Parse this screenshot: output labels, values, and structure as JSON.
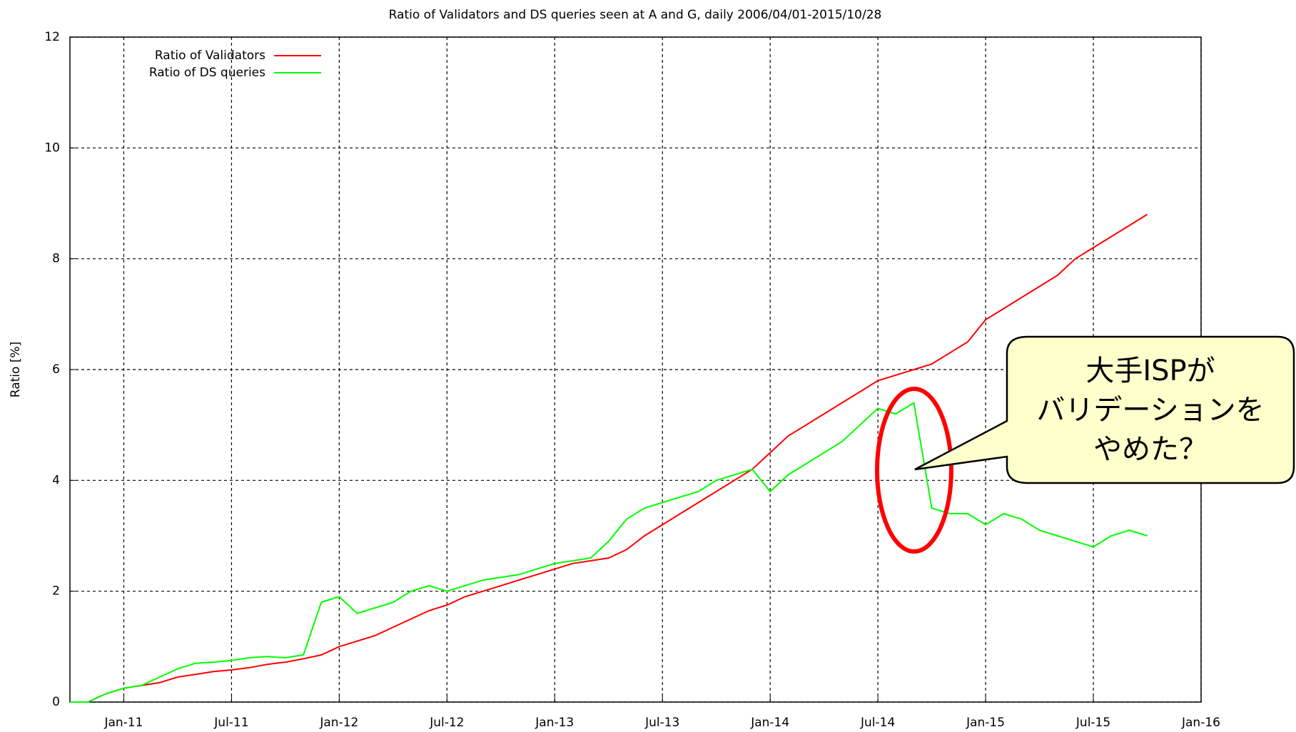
{
  "chart_data": {
    "type": "line",
    "title": "Ratio of Validators and DS queries seen at A and G, daily  2006/04/01-2015/10/28",
    "y_label": "Ratio [%]",
    "x": [
      "2010-10",
      "2010-11",
      "2010-12",
      "2011-01",
      "2011-02",
      "2011-03",
      "2011-04",
      "2011-05",
      "2011-06",
      "2011-07",
      "2011-08",
      "2011-09",
      "2011-10",
      "2011-11",
      "2011-12",
      "2012-01",
      "2012-02",
      "2012-03",
      "2012-04",
      "2012-05",
      "2012-06",
      "2012-07",
      "2012-08",
      "2012-09",
      "2012-10",
      "2012-11",
      "2012-12",
      "2013-01",
      "2013-02",
      "2013-03",
      "2013-04",
      "2013-05",
      "2013-06",
      "2013-07",
      "2013-08",
      "2013-09",
      "2013-10",
      "2013-11",
      "2013-12",
      "2014-01",
      "2014-02",
      "2014-03",
      "2014-04",
      "2014-05",
      "2014-06",
      "2014-07",
      "2014-08",
      "2014-09",
      "2014-10",
      "2014-11",
      "2014-12",
      "2015-01",
      "2015-02",
      "2015-03",
      "2015-04",
      "2015-05",
      "2015-06",
      "2015-07",
      "2015-08",
      "2015-09",
      "2015-10"
    ],
    "series": [
      {
        "name": "Ratio of Validators",
        "color": "#ff0000",
        "values": [
          0,
          0,
          0.15,
          0.25,
          0.3,
          0.35,
          0.45,
          0.5,
          0.55,
          0.58,
          0.62,
          0.68,
          0.72,
          0.78,
          0.85,
          1.0,
          1.1,
          1.2,
          1.35,
          1.5,
          1.65,
          1.75,
          1.9,
          2.0,
          2.1,
          2.2,
          2.3,
          2.4,
          2.5,
          2.55,
          2.6,
          2.75,
          3.0,
          3.2,
          3.4,
          3.6,
          3.8,
          4.0,
          4.2,
          4.5,
          4.8,
          5.0,
          5.2,
          5.4,
          5.6,
          5.8,
          5.9,
          6.0,
          6.1,
          6.3,
          6.5,
          6.9,
          7.1,
          7.3,
          7.5,
          7.7,
          8.0,
          8.2,
          8.4,
          8.6,
          8.8
        ]
      },
      {
        "name": "Ratio of DS queries",
        "color": "#00ff00",
        "values": [
          0,
          0,
          0.15,
          0.25,
          0.3,
          0.45,
          0.6,
          0.7,
          0.72,
          0.75,
          0.8,
          0.82,
          0.8,
          0.85,
          1.8,
          1.9,
          1.6,
          1.7,
          1.8,
          2.0,
          2.1,
          2.0,
          2.1,
          2.2,
          2.25,
          2.3,
          2.4,
          2.5,
          2.55,
          2.6,
          2.9,
          3.3,
          3.5,
          3.6,
          3.7,
          3.8,
          4.0,
          4.1,
          4.2,
          3.8,
          4.1,
          4.3,
          4.5,
          4.7,
          5.0,
          5.3,
          5.2,
          5.4,
          3.5,
          3.4,
          3.4,
          3.2,
          3.4,
          3.3,
          3.1,
          3.0,
          2.9,
          2.8,
          3.0,
          3.1,
          3.0
        ]
      }
    ],
    "xlim": [
      "2010-10",
      "2016-01"
    ],
    "xticks": [
      {
        "value": "2011-01",
        "label": "Jan-11"
      },
      {
        "value": "2011-07",
        "label": "Jul-11"
      },
      {
        "value": "2012-01",
        "label": "Jan-12"
      },
      {
        "value": "2012-07",
        "label": "Jul-12"
      },
      {
        "value": "2013-01",
        "label": "Jan-13"
      },
      {
        "value": "2013-07",
        "label": "Jul-13"
      },
      {
        "value": "2014-01",
        "label": "Jan-14"
      },
      {
        "value": "2014-07",
        "label": "Jul-14"
      },
      {
        "value": "2015-01",
        "label": "Jan-15"
      },
      {
        "value": "2015-07",
        "label": "Jul-15"
      },
      {
        "value": "2016-01",
        "label": "Jan-16"
      }
    ],
    "ylim": [
      0,
      12
    ],
    "yticks": [
      0,
      2,
      4,
      6,
      8,
      10,
      12
    ],
    "grid": true,
    "legend": "top-left",
    "annotation": [
      "大手ISPが",
      "バリデーションを",
      "やめた？"
    ]
  }
}
